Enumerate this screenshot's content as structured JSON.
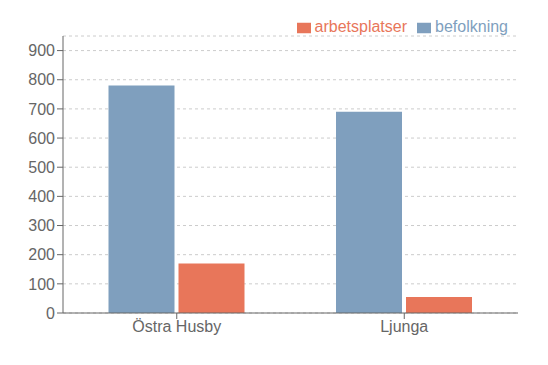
{
  "chart_data": {
    "type": "bar",
    "categories": [
      "Östra Husby",
      "Ljunga"
    ],
    "series": [
      {
        "name": "befolkning",
        "color": "#7f9fbe",
        "values": [
          780,
          690
        ]
      },
      {
        "name": "arbetsplatser",
        "color": "#e8765a",
        "values": [
          170,
          55
        ]
      }
    ],
    "ylim": [
      0,
      950
    ],
    "yticks": [
      0,
      100,
      200,
      300,
      400,
      500,
      600,
      700,
      800,
      900
    ],
    "grid": true,
    "legend": "upper right"
  }
}
